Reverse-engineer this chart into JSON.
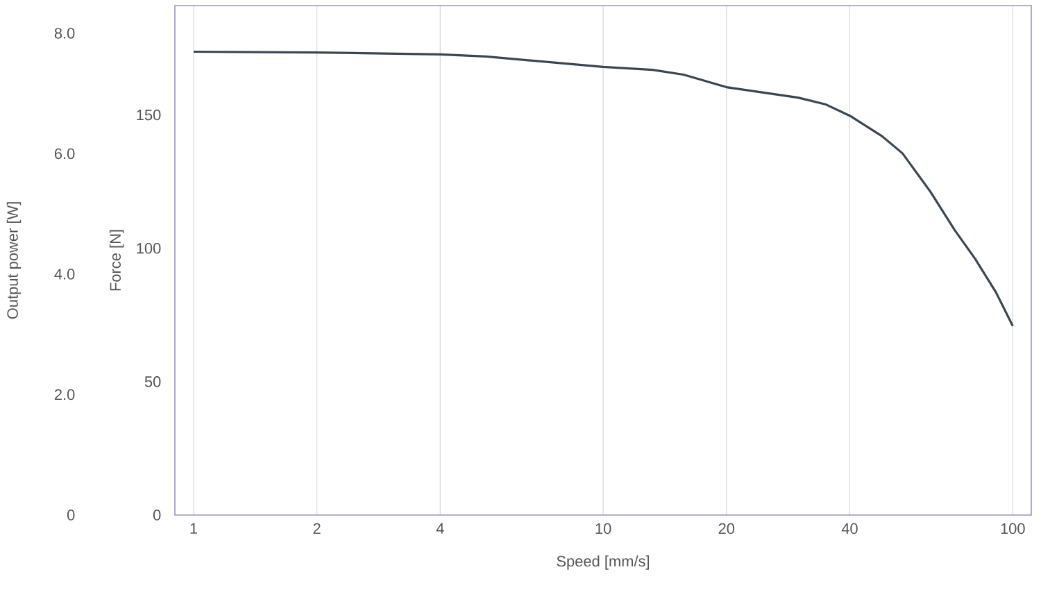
{
  "chart_data": {
    "type": "line",
    "xlabel": "Speed [mm/s]",
    "ylabel": "Force [N]",
    "y2label": "Output power [W]",
    "x": [
      1,
      2,
      4,
      5.17,
      10,
      13.2,
      15.7,
      20,
      29.9,
      35,
      40,
      47.8,
      53.8,
      62.9,
      72.1,
      81,
      91,
      100
    ],
    "series": [
      {
        "color": "#3b4650",
        "values": [
          173.7,
          173.4,
          172.7,
          171.9,
          168,
          166.9,
          165.1,
          160.4,
          156.5,
          153.9,
          149.7,
          142.2,
          135.6,
          121.3,
          106.9,
          96,
          83.5,
          70.9
        ]
      }
    ],
    "log": "x",
    "grid": "x",
    "xlim": [
      0.9,
      111
    ],
    "xticks": [
      1,
      2,
      4,
      10,
      20,
      40,
      100
    ],
    "ylim": [
      0,
      191
    ],
    "yticks": [
      0,
      50,
      100,
      150
    ],
    "y2lim": [
      0,
      8.46
    ],
    "y2ticks": [
      0,
      {
        "value": 2,
        "label": "2.0"
      },
      {
        "value": 4,
        "label": "4.0"
      },
      {
        "value": 6,
        "label": "6.0"
      },
      {
        "value": 8,
        "label": "8.0"
      }
    ]
  }
}
